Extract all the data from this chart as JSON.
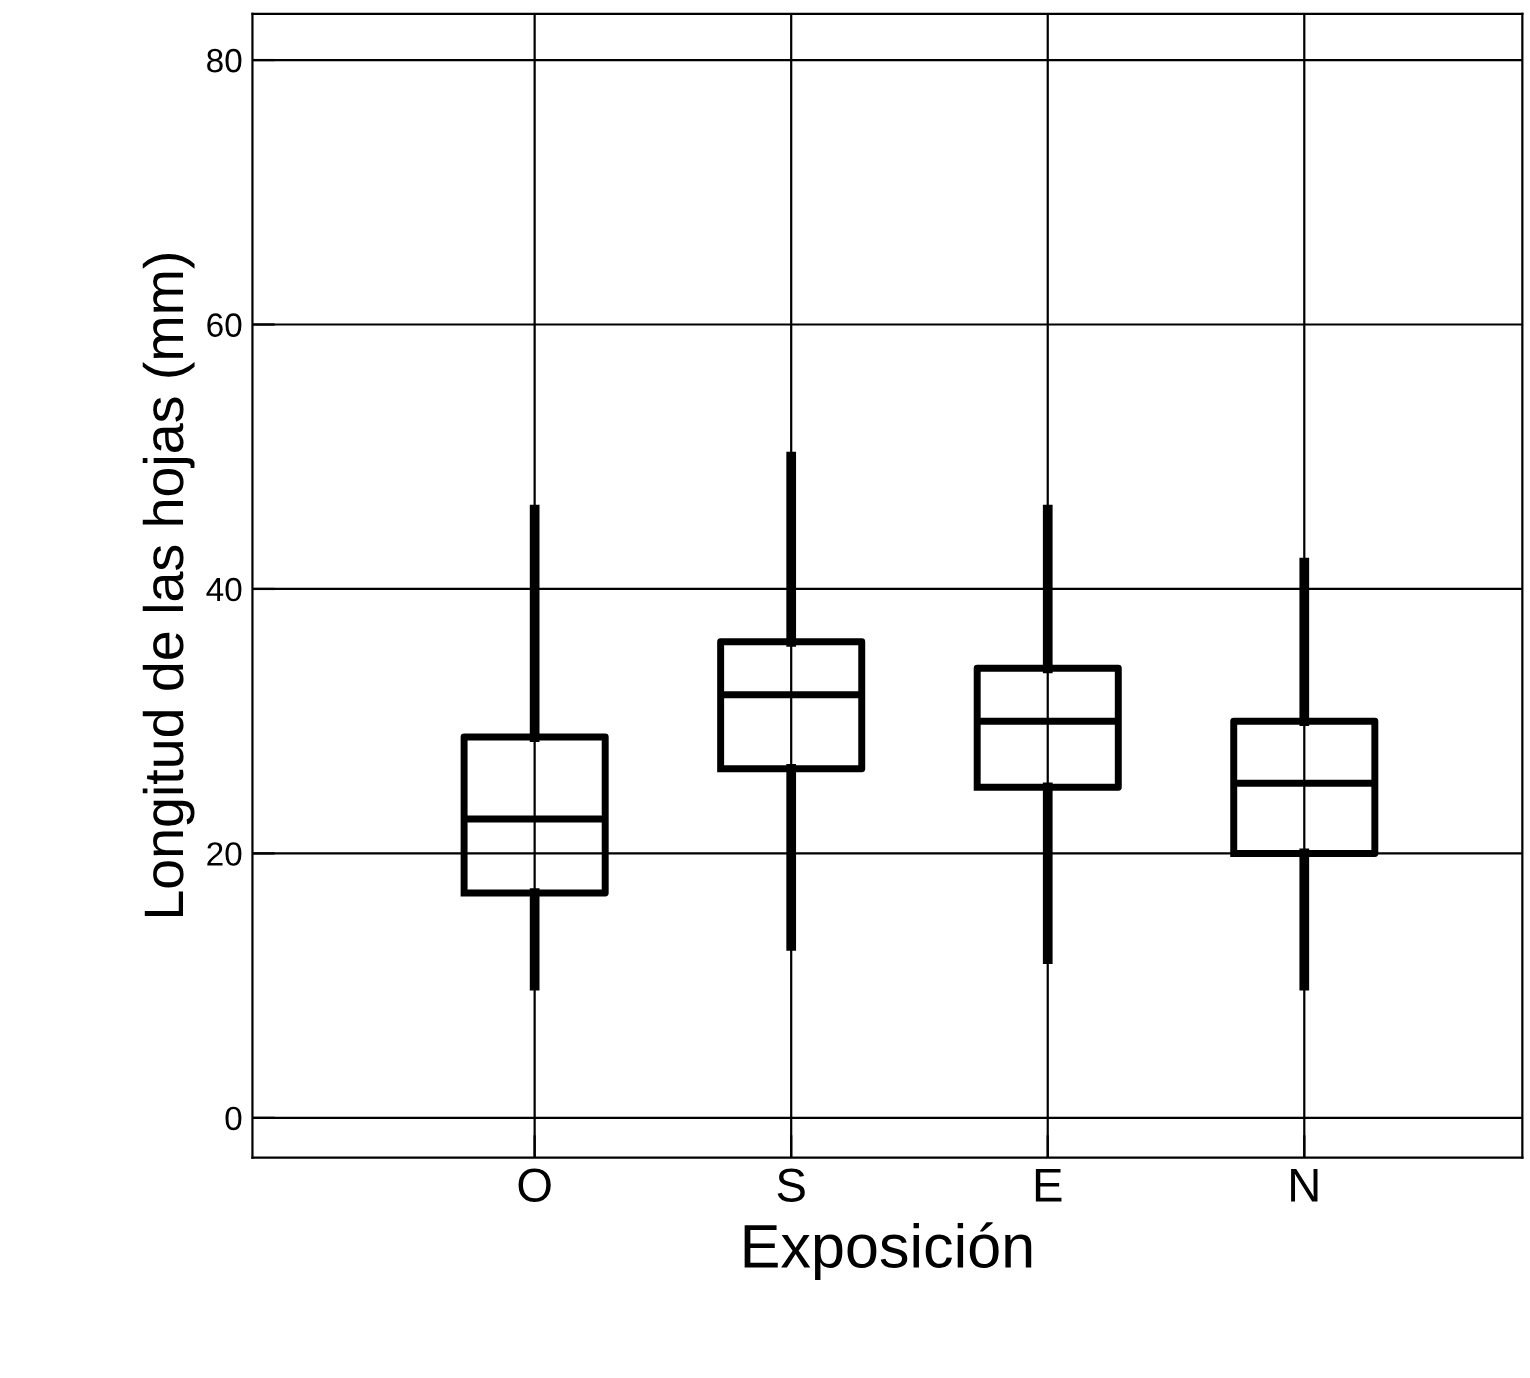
{
  "chart_data": {
    "type": "box",
    "xlabel": "Exposición",
    "ylabel": "Longitud de las hojas (mm)",
    "categories": [
      "O",
      "S",
      "E",
      "N"
    ],
    "boxes": [
      {
        "low": 10,
        "q1": 17,
        "median": 22.6,
        "q3": 28.8,
        "high": 46
      },
      {
        "low": 13,
        "q1": 26.4,
        "median": 32,
        "q3": 36,
        "high": 50
      },
      {
        "low": 12,
        "q1": 25,
        "median": 30,
        "q3": 34,
        "high": 46
      },
      {
        "low": 10,
        "q1": 20,
        "median": 25.3,
        "q3": 30,
        "high": 42
      }
    ],
    "ylim": [
      -3,
      83.5
    ],
    "yticks": [
      0,
      20,
      40,
      60,
      80
    ],
    "grid": true
  }
}
